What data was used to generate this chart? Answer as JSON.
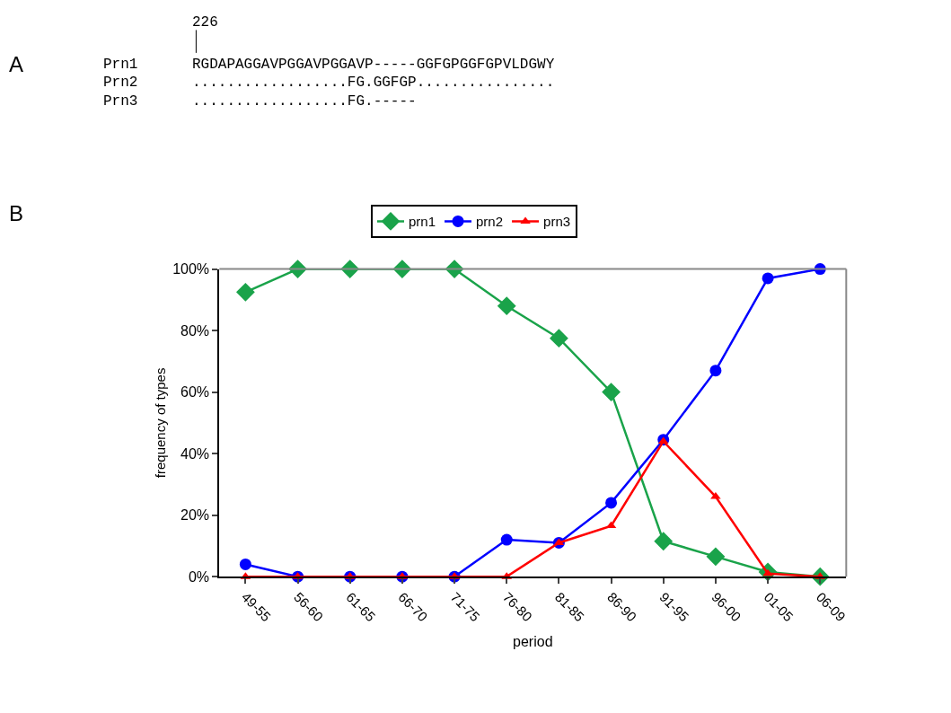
{
  "chart_data": [
    {
      "type": "other",
      "annotations": [
        "A",
        "226",
        "Prn1",
        "RGDAPAGGAVPGGAVPGGAVP-----GGFGPGGFGPVLDGWY",
        "Prn2",
        "..................FG.GGFGP................",
        "Prn3",
        "..................FG.-----"
      ]
    },
    {
      "type": "line",
      "annotations": [
        "B"
      ],
      "xlabel": "period",
      "ylabel": "frequency of types",
      "categories": [
        "49-55",
        "56-60",
        "61-65",
        "66-70",
        "71-75",
        "76-80",
        "81-85",
        "86-90",
        "91-95",
        "96-00",
        "01-05",
        "06-09"
      ],
      "series": [
        {
          "name": "prn1",
          "color": "#1aa34a",
          "marker": "diamond",
          "values": [
            92.5,
            100,
            100,
            100,
            100,
            88,
            77.5,
            60,
            11.5,
            6.5,
            1.5,
            0
          ]
        },
        {
          "name": "prn2",
          "color": "#0000ff",
          "marker": "circle",
          "values": [
            4,
            0,
            0,
            0,
            0,
            12,
            11,
            24,
            44.5,
            67,
            97,
            100
          ]
        },
        {
          "name": "prn3",
          "color": "#ff0000",
          "marker": "triangle",
          "values": [
            0,
            0,
            0,
            0,
            0,
            0,
            11,
            16.5,
            44,
            26,
            1,
            0
          ]
        }
      ],
      "ylim": [
        0,
        100
      ],
      "yticks": [
        {
          "value": 0,
          "label": "0%"
        },
        {
          "value": 20,
          "label": "20%"
        },
        {
          "value": 40,
          "label": "40%"
        },
        {
          "value": 60,
          "label": "60%"
        },
        {
          "value": 80,
          "label": "80%"
        },
        {
          "value": 100,
          "label": "100%"
        }
      ],
      "legend": "top"
    }
  ]
}
